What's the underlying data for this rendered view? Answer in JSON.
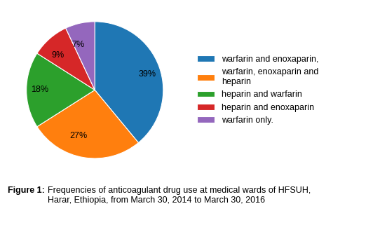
{
  "chart_data": {
    "type": "pie",
    "categories": [
      "warfarin and enoxaparin,",
      "warfarin, enoxaparin and\nheparin",
      "heparin and warfarin",
      "heparin and enoxaparin",
      "warfarin only."
    ],
    "values": [
      39,
      27,
      18,
      9,
      7
    ],
    "value_labels": [
      "39%",
      "27%",
      "18%",
      "9%",
      "7%"
    ],
    "legend": "center left",
    "annotations": [
      "Figure 1:",
      "Frequencies of anticoagulant drug use at medical wards of HFSUH,\nHarar, Ethiopia, from March 30, 2014 to March 30, 2016"
    ]
  }
}
